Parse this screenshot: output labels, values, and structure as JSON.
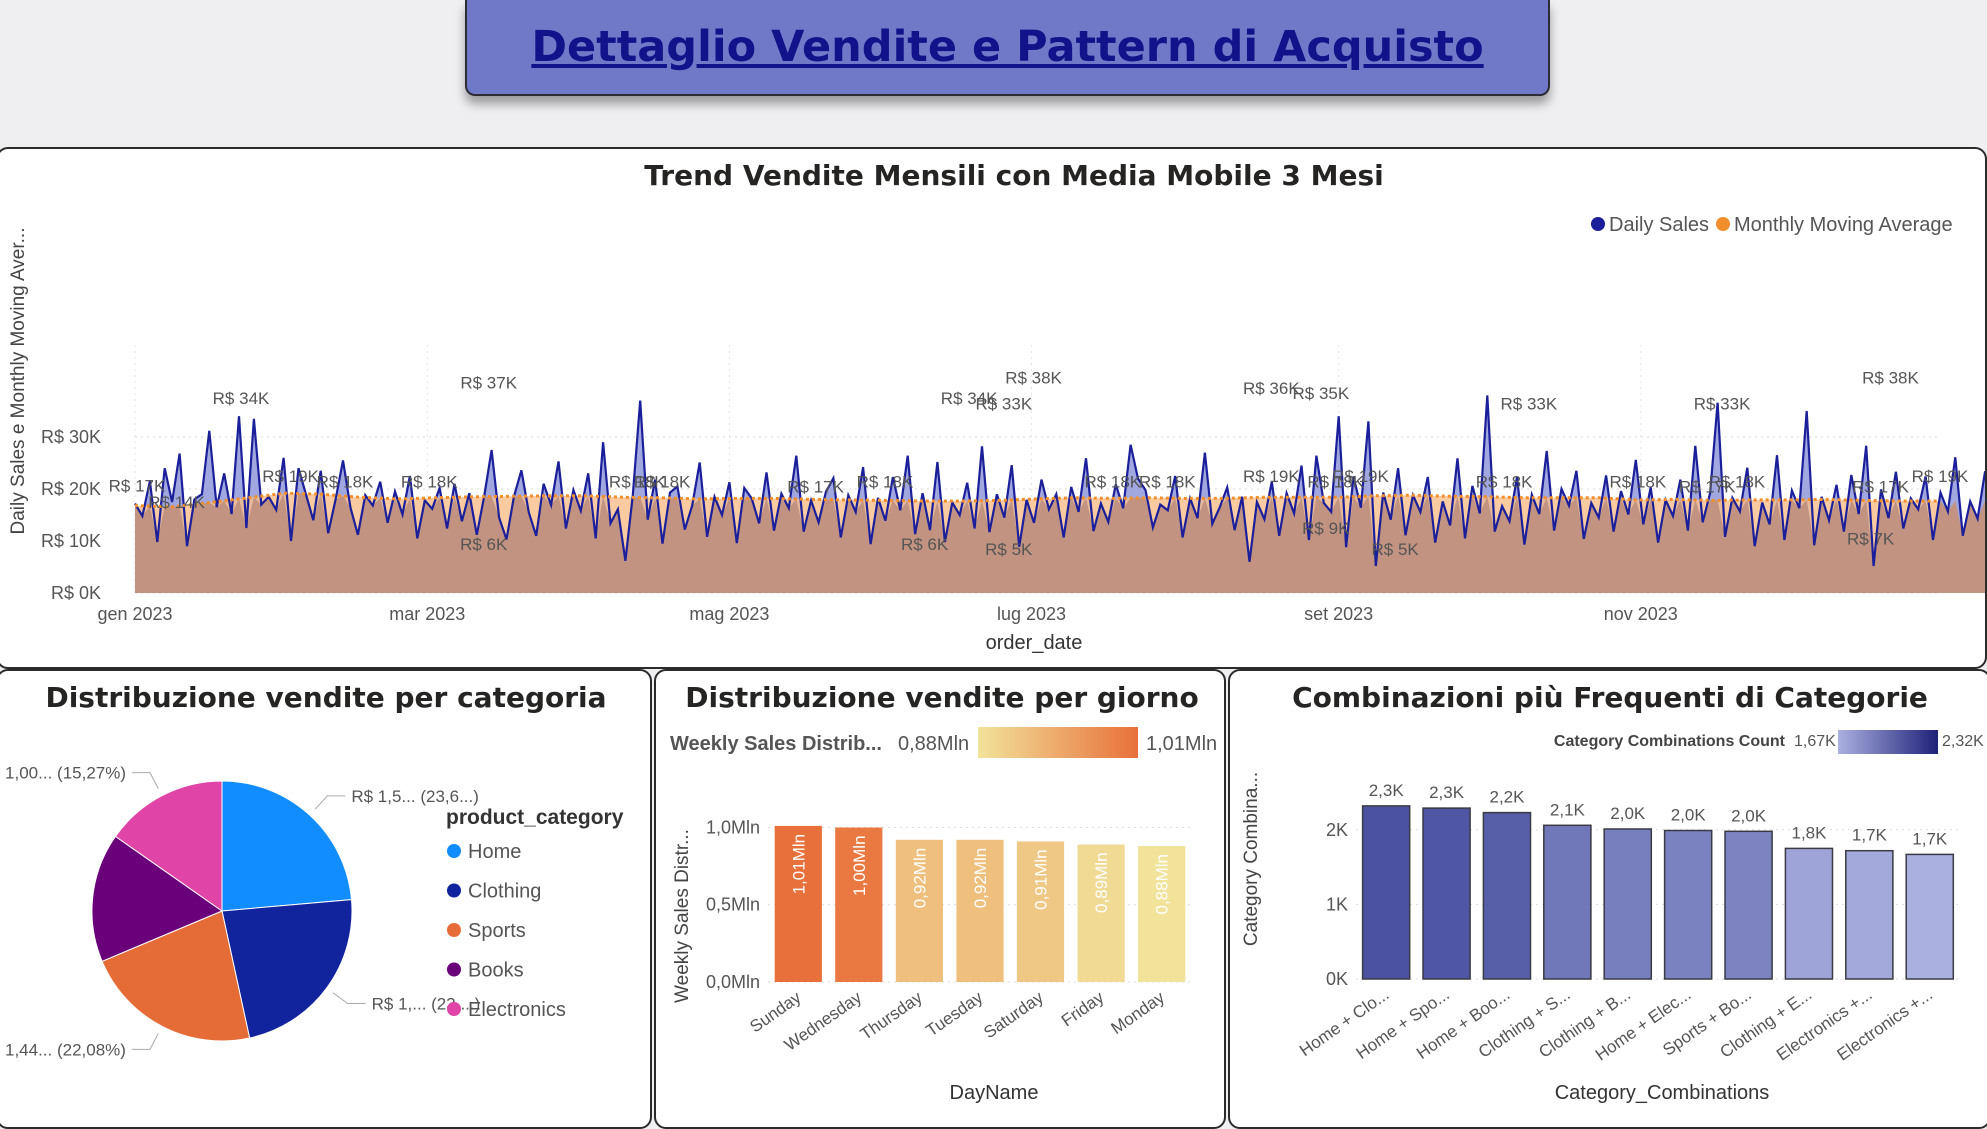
{
  "page": {
    "title": "Dettaglio Vendite e Pattern di Acquisto"
  },
  "colors": {
    "daily_sales": "#1b1f9a",
    "moving_average": "#f28e2b",
    "home": "#118dff",
    "clothing": "#12239e",
    "sports": "#e66c37",
    "books": "#6b007b",
    "electronics": "#e044a7"
  },
  "chart_data": [
    {
      "id": "trend",
      "type": "line",
      "title": "Trend Vendite Mensili con Media Mobile 3 Mesi",
      "xlabel": "order_date",
      "ylabel": "Daily Sales e Monthly Moving Aver...",
      "x_ticks": [
        "gen 2023",
        "mar 2023",
        "mag 2023",
        "lug 2023",
        "set 2023",
        "nov 2023"
      ],
      "y_ticks": [
        "R$ 0K",
        "R$ 10K",
        "R$ 20K",
        "R$ 30K"
      ],
      "ylim": [
        0,
        40000
      ],
      "x_range": [
        "2023-01-01",
        "2023-12-31"
      ],
      "legend": [
        "Daily Sales",
        "Monthly Moving Average"
      ],
      "legend_position": "top-right",
      "series": [
        {
          "name": "Daily Sales",
          "x_start": "2023-01-01",
          "x_step_days": 1.5,
          "values": [
            17200,
            14800,
            21500,
            9800,
            24000,
            17500,
            26800,
            9000,
            18000,
            19000,
            31200,
            16500,
            23000,
            15200,
            34000,
            12500,
            33500,
            17000,
            18500,
            16000,
            26000,
            10000,
            24000,
            19000,
            14000,
            23500,
            11500,
            18000,
            25500,
            16400,
            11200,
            18800,
            16800,
            21400,
            13500,
            19500,
            15100,
            22500,
            10500,
            17800,
            16200,
            20200,
            12400,
            21000,
            13800,
            19200,
            11200,
            18600,
            27500,
            14500,
            10300,
            18500,
            23600,
            15500,
            11000,
            21000,
            16900,
            25300,
            12400,
            19800,
            15800,
            23000,
            10500,
            29000,
            13400,
            16100,
            6200,
            18800,
            37000,
            14100,
            21800,
            9500,
            19300,
            20500,
            12200,
            16800,
            25100,
            10800,
            18500,
            15000,
            21300,
            9600,
            20200,
            18200,
            13400,
            23200,
            12000,
            19100,
            16300,
            26400,
            11800,
            17800,
            13600,
            19500,
            22100,
            10700,
            18800,
            15600,
            24200,
            9400,
            18300,
            13900,
            22300,
            15900,
            26400,
            11300,
            19200,
            12100,
            25200,
            9800,
            17400,
            15000,
            21200,
            12400,
            28200,
            11700,
            19000,
            14500,
            24600,
            8900,
            17900,
            13500,
            21800,
            16100,
            19000,
            10700,
            20400,
            15600,
            25900,
            11900,
            17200,
            13700,
            20900,
            16300,
            28500,
            22000,
            19800,
            12600,
            17000,
            15900,
            22500,
            10700,
            18200,
            14400,
            27000,
            13300,
            16500,
            20300,
            12100,
            18500,
            6000,
            17500,
            14200,
            21400,
            11000,
            19200,
            15300,
            24500,
            10200,
            26400,
            17300,
            15600,
            34000,
            8800,
            22400,
            16400,
            33000,
            5200,
            19300,
            14100,
            24000,
            11100,
            18800,
            15600,
            22300,
            9700,
            17600,
            13000,
            25900,
            10500,
            20600,
            15300,
            38000,
            11800,
            16700,
            13800,
            22300,
            9300,
            18900,
            15200,
            27300,
            12000,
            20000,
            16800,
            23500,
            10400,
            17300,
            14500,
            22600,
            11800,
            19600,
            15100,
            25600,
            13200,
            20300,
            9700,
            17900,
            14800,
            21800,
            12000,
            28300,
            13600,
            19200,
            36600,
            10800,
            18300,
            15700,
            24100,
            9000,
            17400,
            13200,
            26500,
            10200,
            19700,
            16300,
            35000,
            9200,
            18500,
            14000,
            20800,
            11800,
            22700,
            15200,
            28300,
            5200,
            19900,
            14400,
            23300,
            12400,
            18200,
            16100,
            22400,
            10200,
            19300,
            15700,
            26100,
            11000,
            17600,
            14300,
            23400,
            13100,
            20100,
            11400,
            25600,
            15600,
            18900,
            33000,
            10700,
            20000,
            14800,
            22700,
            12000,
            17400,
            15300,
            21200,
            9000,
            18300,
            14400,
            26200,
            10800,
            19800,
            16500,
            24000,
            12500,
            17600,
            15700,
            20900,
            11500,
            27300,
            14900,
            18400,
            33000,
            10000,
            21800,
            15900,
            23200,
            12300,
            18500,
            16300,
            19500,
            10900,
            20600,
            15300,
            24800,
            8000,
            17600,
            14500,
            22600,
            11200,
            19100,
            7500,
            20300,
            16100,
            38500,
            11400,
            18700,
            15500,
            27200,
            12600,
            17800,
            14600,
            19500,
            13200,
            18200
          ]
        },
        {
          "name": "Monthly Moving Average",
          "values": [
            16800,
            16600,
            17400,
            18300,
            19200,
            19000,
            18400,
            18100,
            18300,
            18500,
            18600,
            18700,
            18700,
            18400,
            18300,
            18100,
            18200,
            18200,
            18000,
            17900,
            17800,
            17700,
            17700,
            17800,
            18100,
            18300,
            18200,
            18300,
            18200,
            18200,
            18400,
            18400,
            18400,
            18700,
            18800,
            18600,
            18500,
            18300,
            18300,
            18300,
            17900,
            18000,
            17800,
            17900,
            17900,
            18000,
            17800,
            17700,
            17700
          ]
        }
      ],
      "data_labels": [
        {
          "x": "2023-01-01",
          "y": 17200,
          "text": "R$ 17K"
        },
        {
          "x": "2023-01-09",
          "y": 14000,
          "text": "R$ 14K"
        },
        {
          "x": "2023-01-22",
          "y": 34000,
          "text": "R$ 34K"
        },
        {
          "x": "2023-02-01",
          "y": 19000,
          "text": "R$ 19K"
        },
        {
          "x": "2023-02-12",
          "y": 18000,
          "text": "R$ 18K"
        },
        {
          "x": "2023-03-01",
          "y": 18000,
          "text": "R$ 18K"
        },
        {
          "x": "2023-03-13",
          "y": 37000,
          "text": "R$ 37K"
        },
        {
          "x": "2023-03-12",
          "y": 6000,
          "text": "R$ 6K"
        },
        {
          "x": "2023-04-12",
          "y": 18000,
          "text": "R$ 18K"
        },
        {
          "x": "2023-04-17",
          "y": 18000,
          "text": "R$ 18K"
        },
        {
          "x": "2023-05-18",
          "y": 17000,
          "text": "R$ 17K"
        },
        {
          "x": "2023-06-01",
          "y": 18000,
          "text": "R$ 18K"
        },
        {
          "x": "2023-06-09",
          "y": 6000,
          "text": "R$ 6K"
        },
        {
          "x": "2023-06-18",
          "y": 34000,
          "text": "R$ 34K"
        },
        {
          "x": "2023-06-25",
          "y": 33000,
          "text": "R$ 33K"
        },
        {
          "x": "2023-06-26",
          "y": 5000,
          "text": "R$ 5K"
        },
        {
          "x": "2023-07-01",
          "y": 38000,
          "text": "R$ 38K"
        },
        {
          "x": "2023-07-17",
          "y": 18000,
          "text": "R$ 18K"
        },
        {
          "x": "2023-07-28",
          "y": 18000,
          "text": "R$ 18K"
        },
        {
          "x": "2023-08-18",
          "y": 36000,
          "text": "R$ 36K"
        },
        {
          "x": "2023-08-18",
          "y": 19000,
          "text": "R$ 19K"
        },
        {
          "x": "2023-08-28",
          "y": 35000,
          "text": "R$ 35K"
        },
        {
          "x": "2023-08-31",
          "y": 18000,
          "text": "R$ 18K"
        },
        {
          "x": "2023-09-05",
          "y": 19000,
          "text": "R$ 19K"
        },
        {
          "x": "2023-08-29",
          "y": 9000,
          "text": "R$ 9K"
        },
        {
          "x": "2023-09-12",
          "y": 5000,
          "text": "R$ 5K"
        },
        {
          "x": "2023-10-09",
          "y": 33000,
          "text": "R$ 33K"
        },
        {
          "x": "2023-10-04",
          "y": 18000,
          "text": "R$ 18K"
        },
        {
          "x": "2023-10-31",
          "y": 18000,
          "text": "R$ 18K"
        },
        {
          "x": "2023-11-17",
          "y": 33000,
          "text": "R$ 33K"
        },
        {
          "x": "2023-11-20",
          "y": 18000,
          "text": "R$ 18K"
        },
        {
          "x": "2023-11-14",
          "y": 17000,
          "text": "R$ 17K"
        },
        {
          "x": "2023-12-21",
          "y": 38000,
          "text": "R$ 38K"
        },
        {
          "x": "2023-12-19",
          "y": 17000,
          "text": "R$ 17K"
        },
        {
          "x": "2023-12-17",
          "y": 7000,
          "text": "R$ 7K"
        },
        {
          "x": "2023-12-31",
          "y": 19000,
          "text": "R$ 19K"
        }
      ]
    },
    {
      "id": "category",
      "type": "pie",
      "title": "Distribuzione vendite per categoria",
      "legend_title": "product_category",
      "legend_position": "right",
      "slices": [
        {
          "name": "Home",
          "value": 23.6,
          "label": "R$ 1,5... (23,6...)"
        },
        {
          "name": "Clothing",
          "value": 23.0,
          "label": "R$ 1,... (23,...)"
        },
        {
          "name": "Sports",
          "value": 22.08,
          "label": "R$ 1,44... (22,08%)"
        },
        {
          "name": "Books",
          "value": 16.05,
          "label": ""
        },
        {
          "name": "Electronics",
          "value": 15.27,
          "label": "R$ 1,00... (15,27%)"
        }
      ]
    },
    {
      "id": "weekday",
      "type": "bar",
      "title": "Distribuzione vendite per giorno",
      "xlabel": "DayName",
      "ylabel": "Weekly Sales Distr...",
      "color_legend_title": "Weekly Sales Distrib...",
      "color_min_label": "0,88Mln",
      "color_max_label": "1,01Mln",
      "color_range": [
        0.88,
        1.01
      ],
      "y_ticks": [
        "0,0Mln",
        "0,5Mln",
        "1,0Mln"
      ],
      "ylim": [
        0,
        1.1
      ],
      "categories": [
        "Sunday",
        "Wednesday",
        "Thursday",
        "Tuesday",
        "Saturday",
        "Friday",
        "Monday"
      ],
      "values": [
        1.01,
        1.0,
        0.92,
        0.92,
        0.91,
        0.89,
        0.88
      ],
      "value_labels": [
        "1,01Mln",
        "1,00Mln",
        "0,92Mln",
        "0,92Mln",
        "0,91Mln",
        "0,89Mln",
        "0,88Mln"
      ]
    },
    {
      "id": "combinations",
      "type": "bar",
      "title": "Combinazioni più Frequenti di Categorie",
      "xlabel": "Category_Combinations",
      "ylabel": "Category Combina...",
      "color_legend_title": "Category Combinations Count",
      "color_min_label": "1,67K",
      "color_max_label": "2,32K",
      "color_range": [
        1670,
        2320
      ],
      "y_ticks": [
        "0K",
        "1K",
        "2K"
      ],
      "ylim": [
        0,
        2600
      ],
      "categories": [
        "Home + Clo...",
        "Home + Spo...",
        "Home + Boo...",
        "Clothing + S...",
        "Clothing + B...",
        "Home + Elec...",
        "Sports + Bo...",
        "Clothing + E...",
        "Electronics +...",
        "Electronics +..."
      ],
      "values": [
        2320,
        2290,
        2230,
        2060,
        2010,
        1990,
        1980,
        1750,
        1720,
        1670
      ],
      "value_labels": [
        "2,3K",
        "2,3K",
        "2,2K",
        "2,1K",
        "2,0K",
        "2,0K",
        "2,0K",
        "1,8K",
        "1,7K",
        "1,7K"
      ]
    }
  ]
}
